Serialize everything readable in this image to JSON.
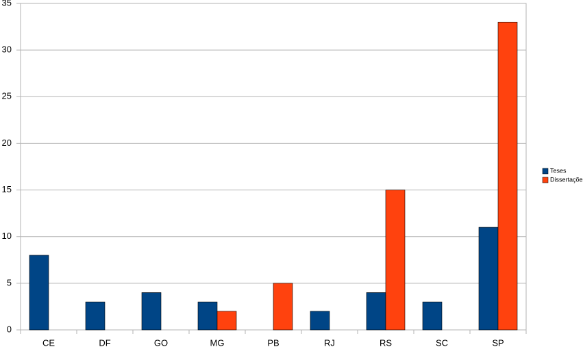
{
  "chart_data": {
    "type": "bar",
    "categories": [
      "CE",
      "DF",
      "GO",
      "MG",
      "PB",
      "RJ",
      "RS",
      "SC",
      "SP"
    ],
    "series": [
      {
        "name": "Teses",
        "color": "#004586",
        "values": [
          8,
          3,
          4,
          3,
          null,
          2,
          4,
          3,
          11
        ]
      },
      {
        "name": "Dissertações",
        "color": "#ff420e",
        "values": [
          null,
          null,
          null,
          2,
          5,
          null,
          15,
          null,
          33
        ]
      }
    ],
    "ylim": [
      0,
      35
    ],
    "yticks": [
      0,
      5,
      10,
      15,
      20,
      25,
      30,
      35
    ],
    "grid": true,
    "legend": "right"
  }
}
